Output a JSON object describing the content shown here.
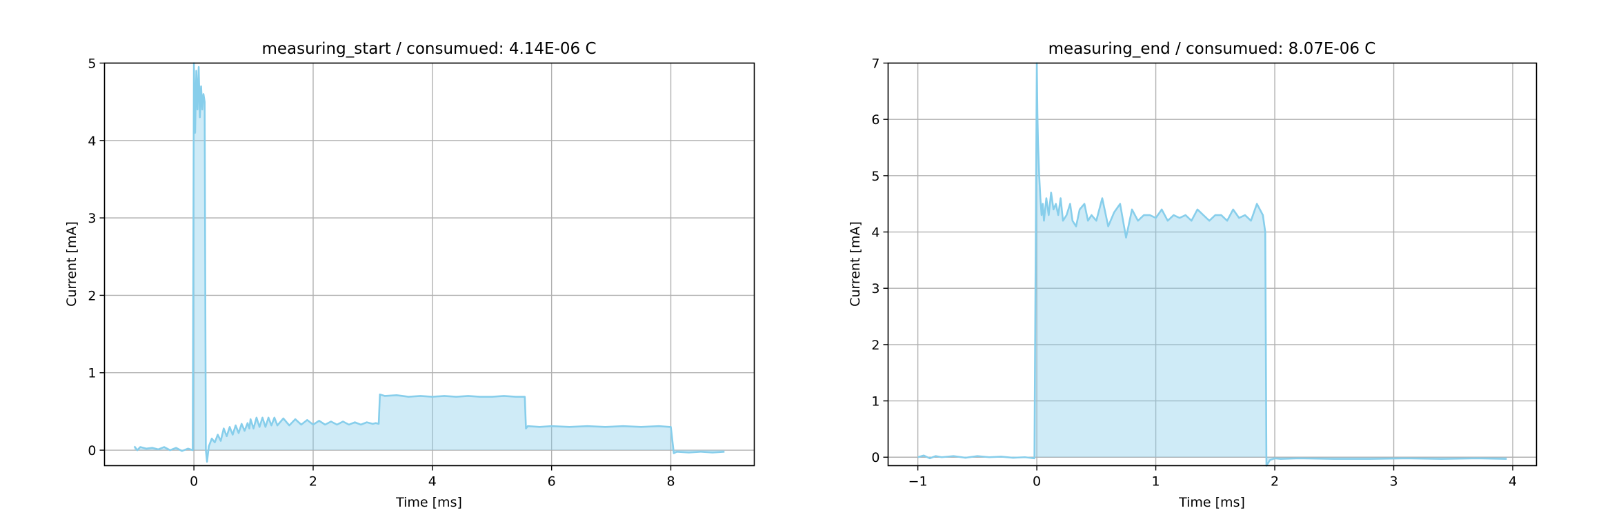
{
  "figure": {
    "background": "#ffffff",
    "line_color": "#87ceeb",
    "fill_color": "#87ceeb",
    "fill_opacity": 0.4,
    "grid": true
  },
  "chart_data": [
    {
      "type": "area",
      "title": "measuring_start / consumued: 4.14E-06 C",
      "xlabel": "Time [ms]",
      "ylabel": "Current [mA]",
      "xlim": [
        -1.5,
        9.4
      ],
      "ylim": [
        -0.2,
        5.0
      ],
      "xticks": [
        0,
        2,
        4,
        6,
        8
      ],
      "xtick_labels": [
        "0",
        "2",
        "4",
        "6",
        "8"
      ],
      "yticks": [
        0,
        1,
        2,
        3,
        4,
        5
      ],
      "ytick_labels": [
        "0",
        "1",
        "2",
        "3",
        "4",
        "5"
      ],
      "grid": true,
      "series": [
        {
          "x": [
            -1.0,
            -0.95,
            -0.9,
            -0.8,
            -0.7,
            -0.6,
            -0.5,
            -0.4,
            -0.3,
            -0.2,
            -0.1,
            -0.02,
            0.0,
            0.02,
            0.04,
            0.06,
            0.08,
            0.1,
            0.12,
            0.14,
            0.16,
            0.18,
            0.2,
            0.22,
            0.25,
            0.3,
            0.35,
            0.4,
            0.45,
            0.5,
            0.55,
            0.6,
            0.65,
            0.7,
            0.75,
            0.8,
            0.85,
            0.9,
            0.93,
            0.95,
            1.0,
            1.05,
            1.1,
            1.15,
            1.2,
            1.25,
            1.3,
            1.35,
            1.4,
            1.5,
            1.6,
            1.7,
            1.8,
            1.9,
            2.0,
            2.1,
            2.2,
            2.3,
            2.4,
            2.5,
            2.6,
            2.7,
            2.8,
            2.9,
            3.0,
            3.05,
            3.1,
            3.12,
            3.2,
            3.4,
            3.6,
            3.8,
            4.0,
            4.2,
            4.4,
            4.6,
            4.8,
            5.0,
            5.2,
            5.4,
            5.55,
            5.57,
            5.6,
            5.8,
            6.0,
            6.3,
            6.6,
            6.9,
            7.2,
            7.5,
            7.8,
            7.98,
            8.0,
            8.05,
            8.1,
            8.3,
            8.5,
            8.7,
            8.9
          ],
          "values": [
            0.05,
            0.0,
            0.04,
            0.02,
            0.03,
            0.01,
            0.04,
            0.0,
            0.03,
            -0.01,
            0.02,
            0.0,
            5.0,
            4.1,
            4.9,
            4.4,
            4.95,
            4.3,
            4.7,
            4.4,
            4.6,
            4.5,
            0.0,
            -0.15,
            0.05,
            0.15,
            0.1,
            0.2,
            0.12,
            0.28,
            0.18,
            0.3,
            0.2,
            0.32,
            0.22,
            0.34,
            0.25,
            0.35,
            0.28,
            0.4,
            0.28,
            0.42,
            0.3,
            0.42,
            0.3,
            0.42,
            0.32,
            0.42,
            0.32,
            0.41,
            0.32,
            0.4,
            0.33,
            0.39,
            0.33,
            0.38,
            0.33,
            0.37,
            0.33,
            0.37,
            0.33,
            0.36,
            0.33,
            0.36,
            0.34,
            0.35,
            0.34,
            0.72,
            0.7,
            0.71,
            0.69,
            0.7,
            0.69,
            0.7,
            0.69,
            0.7,
            0.69,
            0.69,
            0.7,
            0.69,
            0.69,
            0.28,
            0.31,
            0.3,
            0.31,
            0.3,
            0.31,
            0.3,
            0.31,
            0.3,
            0.31,
            0.3,
            0.3,
            -0.04,
            -0.02,
            -0.03,
            -0.02,
            -0.03,
            -0.02
          ]
        }
      ]
    },
    {
      "type": "area",
      "title": "measuring_end / consumued: 8.07E-06 C",
      "xlabel": "Time [ms]",
      "ylabel": "Current [mA]",
      "xlim": [
        -1.25,
        4.2
      ],
      "ylim": [
        -0.15,
        7.0
      ],
      "xticks": [
        -1,
        0,
        1,
        2,
        3,
        4
      ],
      "xtick_labels": [
        "−1",
        "0",
        "1",
        "2",
        "3",
        "4"
      ],
      "yticks": [
        0,
        1,
        2,
        3,
        4,
        5,
        6,
        7
      ],
      "ytick_labels": [
        "0",
        "1",
        "2",
        "3",
        "4",
        "5",
        "6",
        "7"
      ],
      "grid": true,
      "series": [
        {
          "x": [
            -1.0,
            -0.95,
            -0.9,
            -0.85,
            -0.8,
            -0.7,
            -0.6,
            -0.5,
            -0.4,
            -0.3,
            -0.2,
            -0.1,
            -0.02,
            0.0,
            0.005,
            0.01,
            0.02,
            0.03,
            0.04,
            0.05,
            0.06,
            0.08,
            0.1,
            0.12,
            0.14,
            0.16,
            0.18,
            0.2,
            0.22,
            0.25,
            0.28,
            0.3,
            0.33,
            0.36,
            0.4,
            0.43,
            0.46,
            0.5,
            0.55,
            0.6,
            0.65,
            0.7,
            0.75,
            0.8,
            0.85,
            0.9,
            0.95,
            1.0,
            1.05,
            1.1,
            1.15,
            1.2,
            1.25,
            1.3,
            1.35,
            1.4,
            1.45,
            1.5,
            1.55,
            1.6,
            1.65,
            1.7,
            1.75,
            1.8,
            1.85,
            1.9,
            1.92,
            1.93,
            1.96,
            2.0,
            2.05,
            2.2,
            2.5,
            2.8,
            3.1,
            3.4,
            3.7,
            3.95
          ],
          "values": [
            0.0,
            0.03,
            -0.02,
            0.02,
            0.0,
            0.02,
            -0.01,
            0.02,
            0.0,
            0.01,
            -0.01,
            0.0,
            -0.02,
            7.0,
            6.1,
            5.6,
            5.0,
            4.6,
            4.3,
            4.5,
            4.2,
            4.6,
            4.3,
            4.7,
            4.4,
            4.5,
            4.3,
            4.6,
            4.2,
            4.3,
            4.5,
            4.2,
            4.1,
            4.4,
            4.5,
            4.2,
            4.3,
            4.2,
            4.6,
            4.1,
            4.35,
            4.5,
            3.9,
            4.4,
            4.2,
            4.3,
            4.3,
            4.25,
            4.4,
            4.2,
            4.3,
            4.25,
            4.3,
            4.2,
            4.4,
            4.3,
            4.2,
            4.3,
            4.3,
            4.2,
            4.4,
            4.25,
            4.3,
            4.2,
            4.5,
            4.3,
            4.0,
            -0.18,
            -0.05,
            -0.02,
            -0.03,
            -0.02,
            -0.03,
            -0.03,
            -0.02,
            -0.03,
            -0.02,
            -0.03
          ]
        }
      ]
    }
  ]
}
